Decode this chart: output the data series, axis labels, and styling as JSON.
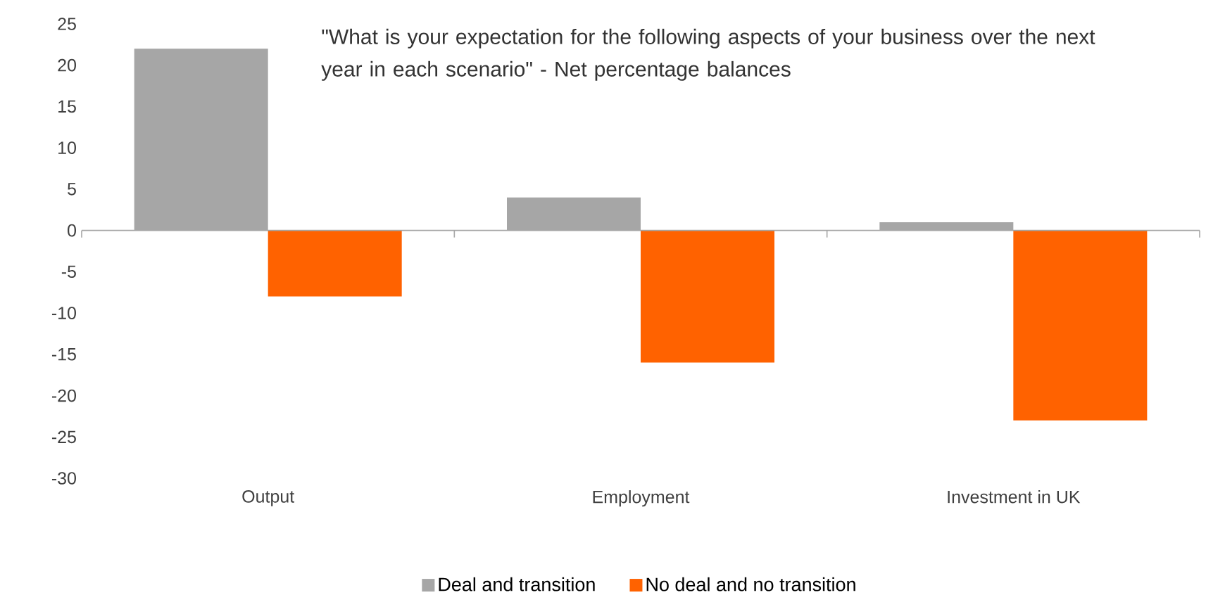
{
  "chart_data": {
    "type": "bar",
    "annotations": [
      "\"What is your expectation for the following aspects of your business over the next year in each scenario\" - Net percentage balances"
    ],
    "categories": [
      "Output",
      "Employment",
      "Investment in UK"
    ],
    "series": [
      {
        "name": "Deal and transition",
        "color": "#a6a6a6",
        "values": [
          22,
          4,
          1
        ]
      },
      {
        "name": "No deal and no transition",
        "color": "#ff6200",
        "values": [
          -8,
          -16,
          -23
        ]
      }
    ],
    "ylim": [
      -30,
      25
    ],
    "yticks": [
      -30,
      -25,
      -20,
      -15,
      -10,
      -5,
      0,
      5,
      10,
      15,
      20,
      25
    ],
    "legend": "bottom"
  }
}
